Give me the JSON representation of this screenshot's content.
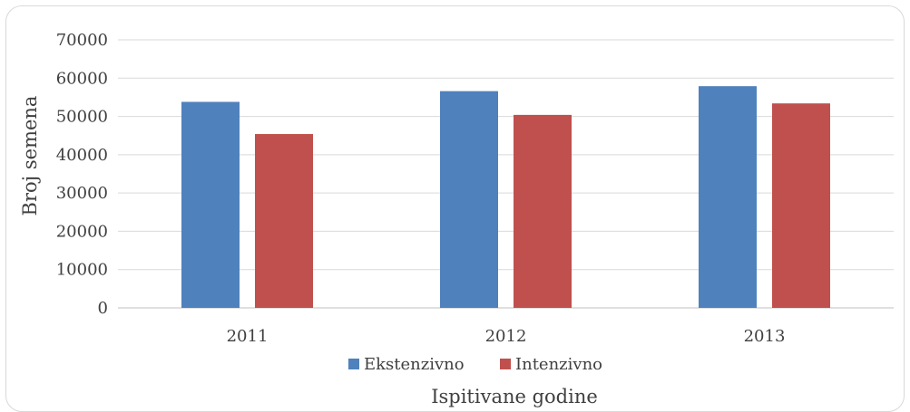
{
  "chart_data": {
    "type": "bar",
    "title": "",
    "xlabel": "Ispitivane godine",
    "ylabel": "Broj semena",
    "categories": [
      "2011",
      "2012",
      "2013"
    ],
    "series": [
      {
        "name": "Ekstenzivno",
        "color": "#4f81bd",
        "values": [
          53800,
          56600,
          57900
        ]
      },
      {
        "name": "Intenzivno",
        "color": "#c0504d",
        "values": [
          45400,
          50400,
          53400
        ]
      }
    ],
    "ylim": [
      0,
      70000
    ],
    "yticks": [
      "0",
      "10000",
      "20000",
      "30000",
      "40000",
      "50000",
      "60000",
      "70000"
    ],
    "grid": true,
    "legend_position": "bottom"
  }
}
